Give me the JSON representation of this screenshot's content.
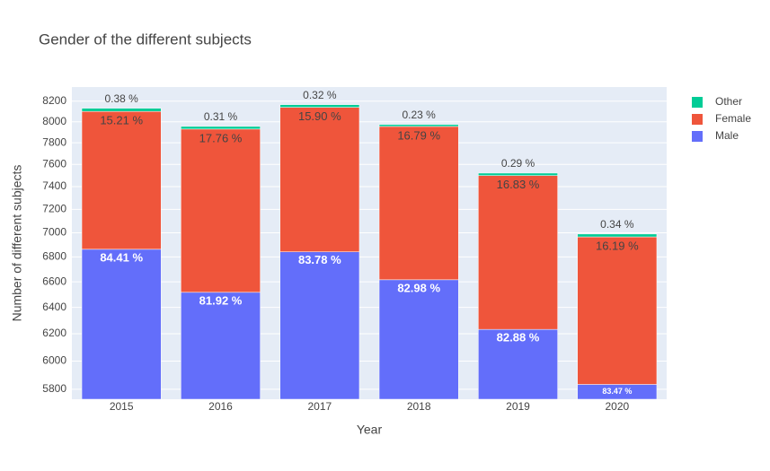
{
  "chart_data": {
    "type": "bar",
    "stacked": true,
    "title": "Gender of the different subjects",
    "x_label": "Year",
    "y_label": "Number of different subjects",
    "categories": [
      "2015",
      "2016",
      "2017",
      "2018",
      "2019",
      "2020"
    ],
    "log_y": true,
    "ylim": [
      5731,
      8341
    ],
    "yticks": [
      5800,
      6000,
      6200,
      6400,
      6600,
      6800,
      7000,
      7200,
      7400,
      7600,
      7800,
      8000,
      8200
    ],
    "grid": true,
    "legend_position": "top-right",
    "series": [
      {
        "name": "Male",
        "color": "#636efa",
        "values": [
          6863,
          6517,
          6842,
          6616,
          6233,
          5834
        ],
        "text": [
          "84.41 %",
          "81.92 %",
          "83.78 %",
          "82.98 %",
          "82.88 %",
          "83.47 %"
        ]
      },
      {
        "name": "Female",
        "color": "#ef553b",
        "values": [
          1237,
          1413,
          1298,
          1339,
          1266,
          1132
        ],
        "text": [
          "15.21 %",
          "17.76 %",
          "15.90 %",
          "16.79 %",
          "16.83 %",
          "16.19 %"
        ]
      },
      {
        "name": "Other",
        "color": "#00cc96",
        "values": [
          31,
          25,
          26,
          18,
          22,
          24
        ],
        "text": [
          "0.38 %",
          "0.31 %",
          "0.32 %",
          "0.23 %",
          "0.29 %",
          "0.34 %"
        ]
      }
    ]
  }
}
